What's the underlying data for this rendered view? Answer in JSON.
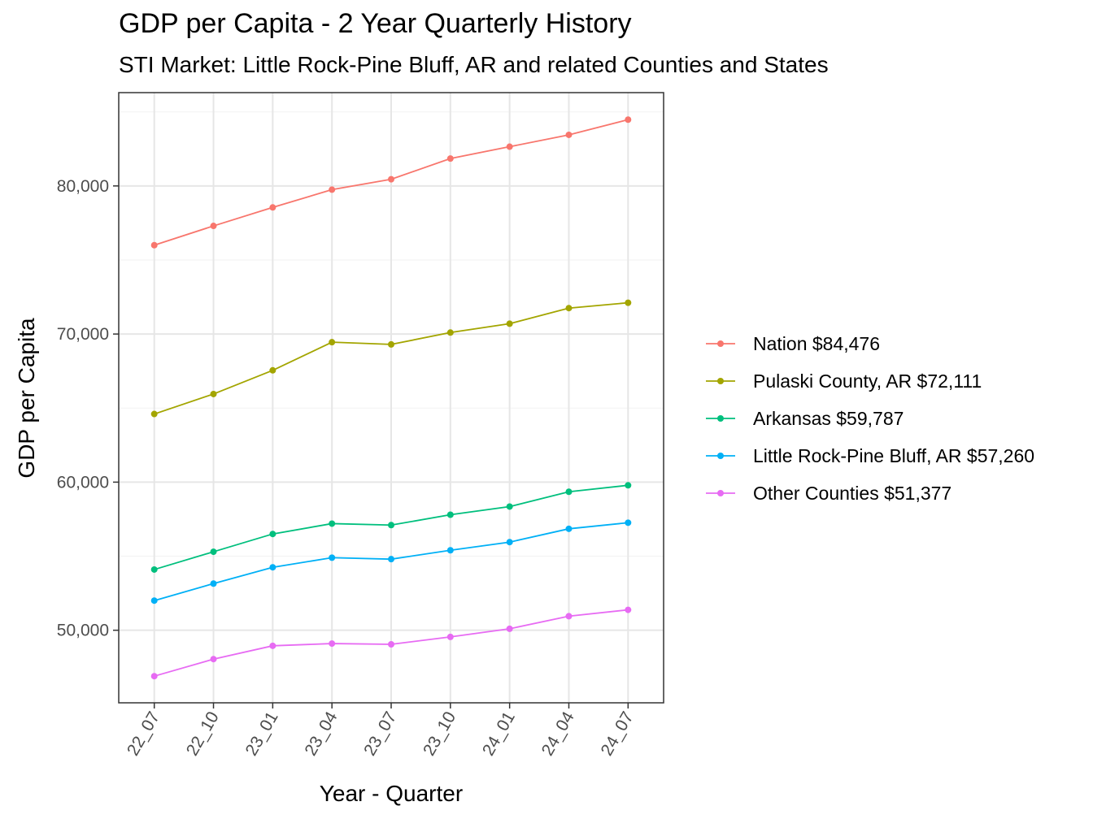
{
  "title": "GDP per Capita - 2 Year Quarterly History",
  "subtitle": "STI Market: Little Rock-Pine Bluff, AR and related Counties and States",
  "chart_data": {
    "type": "line",
    "title": "GDP per Capita - 2 Year Quarterly History",
    "subtitle": "STI Market: Little Rock-Pine Bluff, AR and related Counties and States",
    "xlabel": "Year - Quarter",
    "ylabel": "GDP per Capita",
    "categories": [
      "22_07",
      "22_10",
      "23_01",
      "23_04",
      "23_07",
      "23_10",
      "24_01",
      "24_04",
      "24_07"
    ],
    "ylim": [
      45100,
      86300
    ],
    "yticks": [
      50000,
      60000,
      70000,
      80000
    ],
    "ytick_labels": [
      "50,000",
      "60,000",
      "70,000",
      "80,000"
    ],
    "grid": true,
    "legend_position": "right",
    "series": [
      {
        "name": "Nation $84,476",
        "color": "#F8766D",
        "values": [
          76000,
          77300,
          78550,
          79750,
          80450,
          81850,
          82650,
          83450,
          84476
        ]
      },
      {
        "name": "Pulaski County, AR $72,111",
        "color": "#A3A500",
        "values": [
          64600,
          65950,
          67550,
          69450,
          69300,
          70100,
          70700,
          71750,
          72111
        ]
      },
      {
        "name": "Arkansas $59,787",
        "color": "#00BF7D",
        "values": [
          54100,
          55300,
          56500,
          57200,
          57100,
          57800,
          58350,
          59350,
          59787
        ]
      },
      {
        "name": "Little Rock-Pine Bluff, AR $57,260",
        "color": "#00B0F6",
        "values": [
          52000,
          53150,
          54250,
          54900,
          54800,
          55400,
          55950,
          56850,
          57260
        ]
      },
      {
        "name": "Other Counties $51,377",
        "color": "#E76BF3",
        "values": [
          46900,
          48050,
          48950,
          49100,
          49050,
          49550,
          50100,
          50950,
          51377
        ]
      }
    ]
  }
}
